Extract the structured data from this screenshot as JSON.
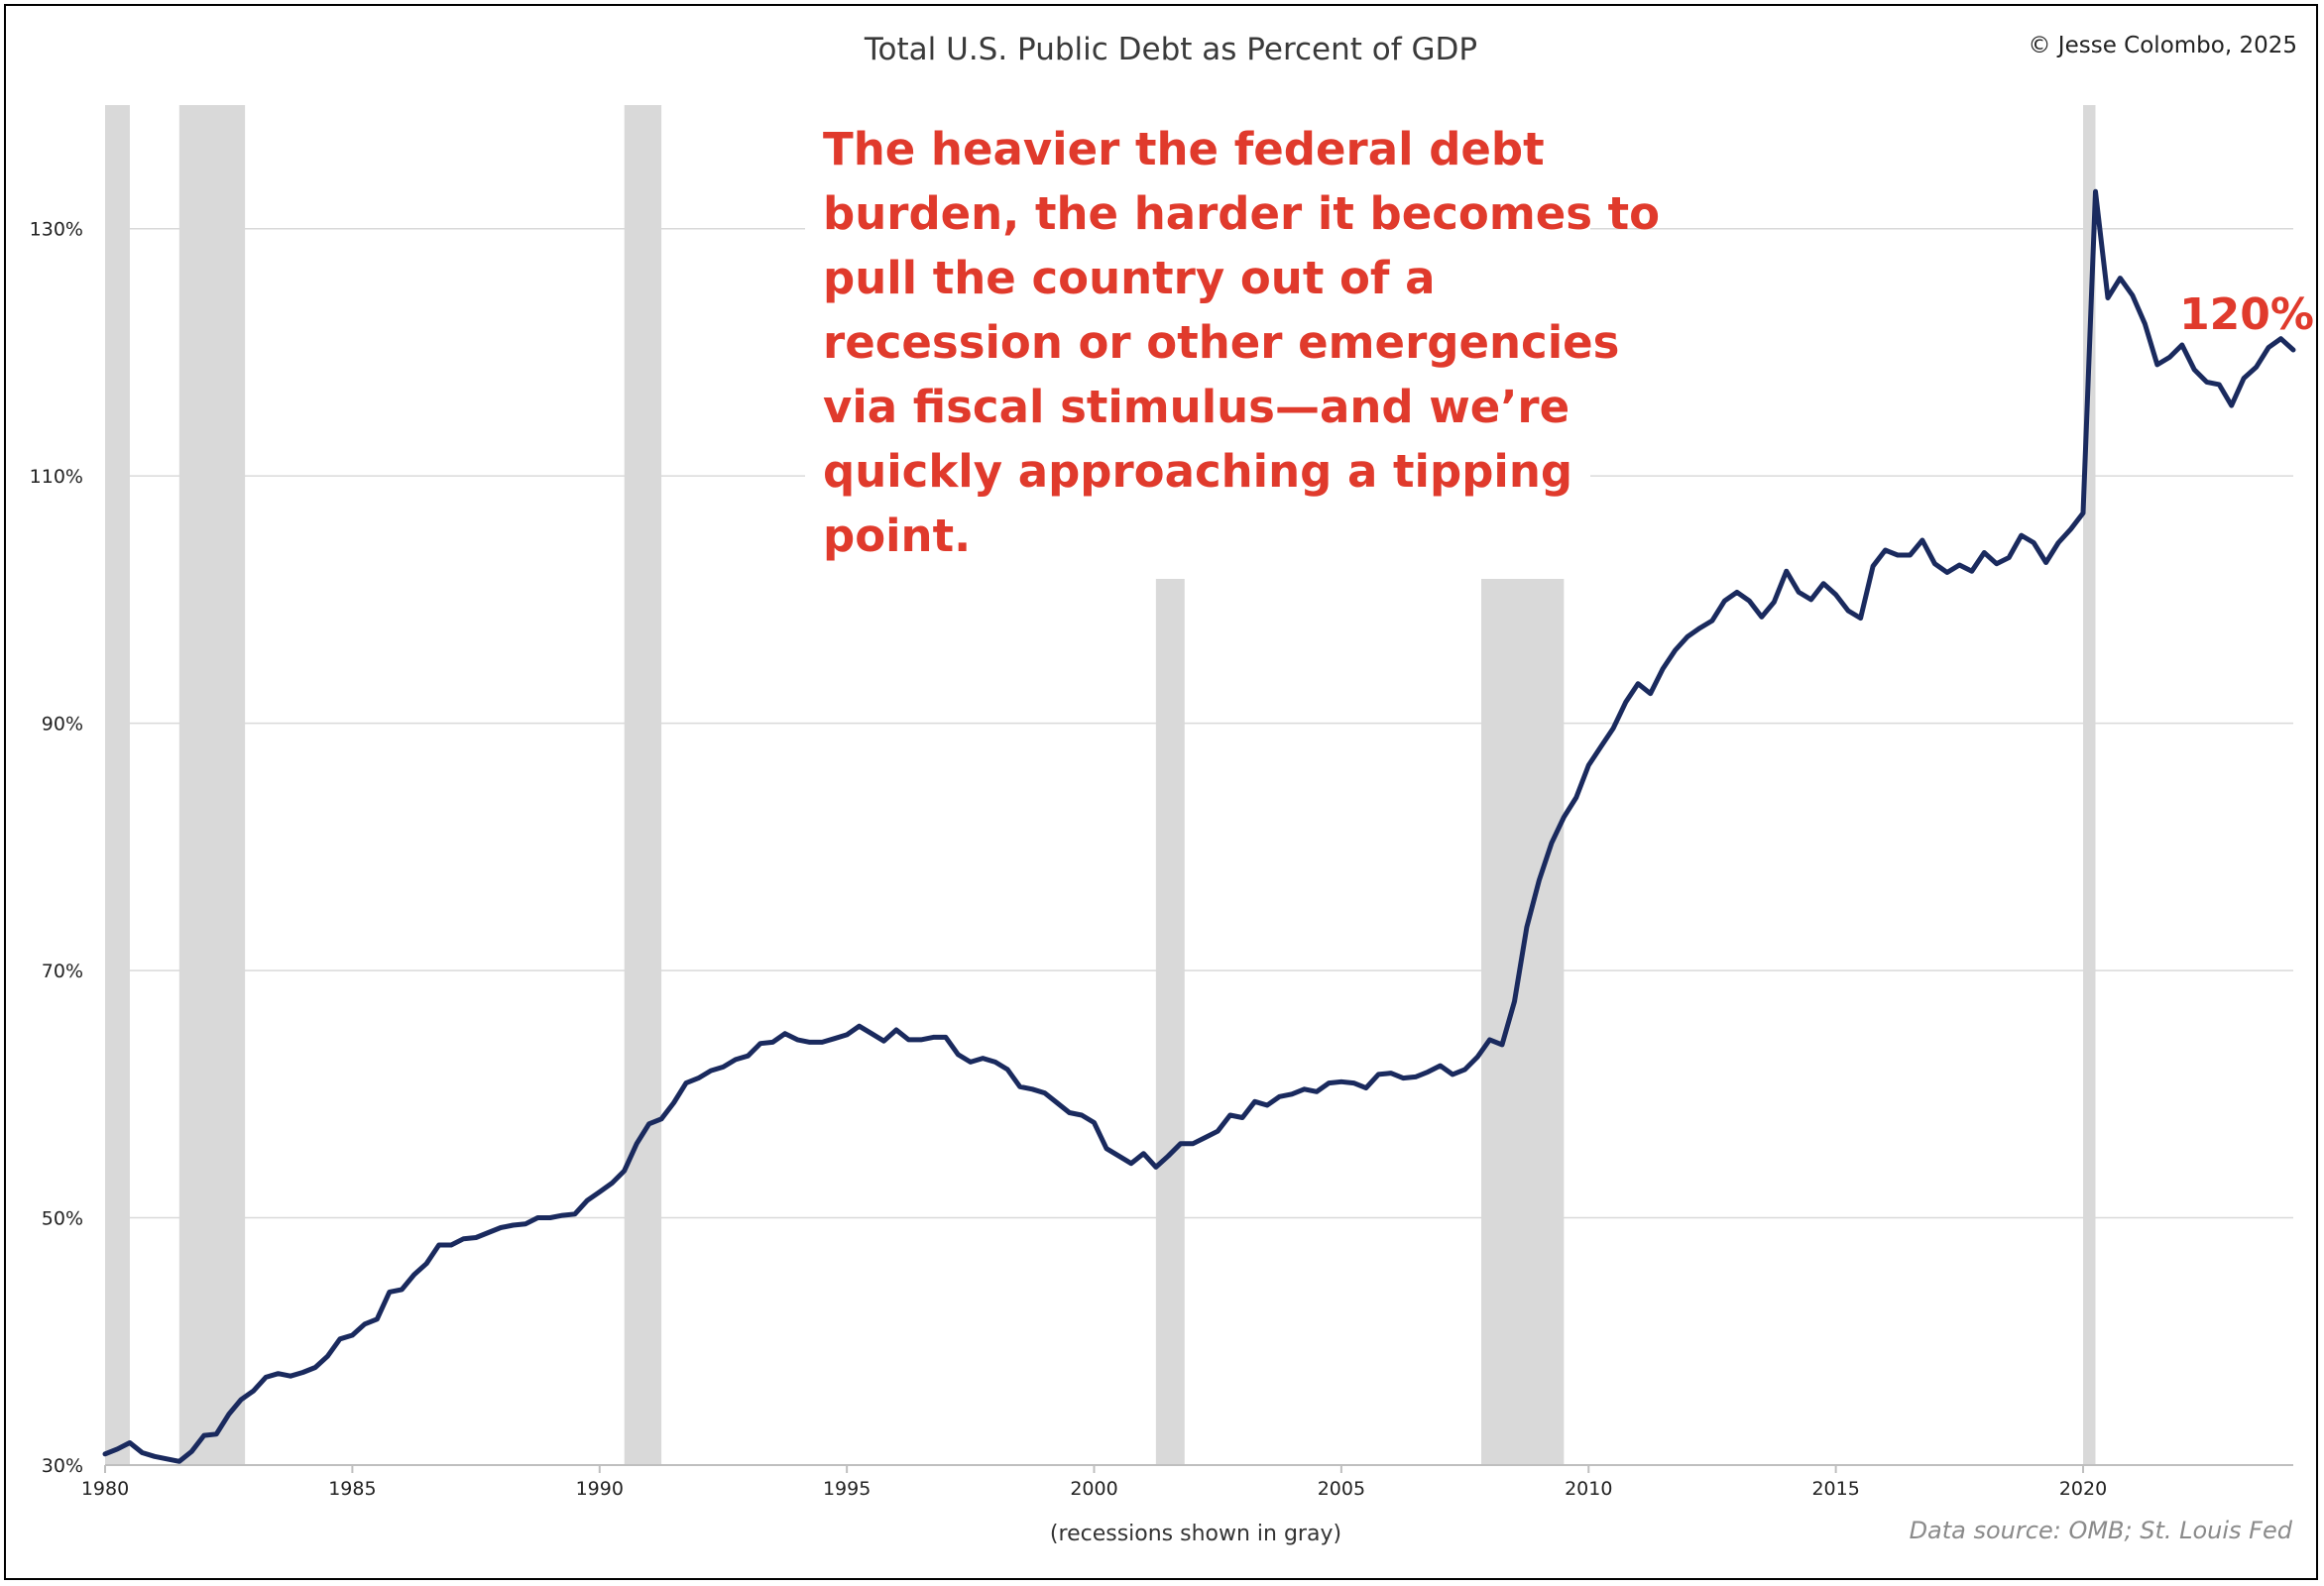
{
  "chart_data": {
    "type": "line",
    "title": "Total U.S. Public Debt as Percent of GDP",
    "copyright": "© Jesse Colombo, 2025",
    "xlabel": "(recessions shown in gray)",
    "ylabel": "",
    "source": "Data source: OMB; St. Louis Fed",
    "xlim": [
      1980,
      2024.25
    ],
    "ylim": [
      30,
      140
    ],
    "x_ticks": [
      "1980",
      "1985",
      "1990",
      "1995",
      "2000",
      "2005",
      "2010",
      "2015",
      "2020"
    ],
    "y_ticks": [
      "30%",
      "50%",
      "70%",
      "90%",
      "110%",
      "130%"
    ],
    "grid": "horizontal",
    "line_color": "#1a2a5e",
    "recession_color": "#d9d9d9",
    "annotation_color": "#e03a2c",
    "annotation_lines": [
      "The heavier the federal debt",
      "burden, the harder it becomes to",
      "pull the country out of a",
      "recession or other emergencies",
      "via fiscal stimulus—and we’re",
      "quickly approaching a tipping",
      "point."
    ],
    "end_label": "120%",
    "recessions": [
      [
        1980.0,
        1980.5
      ],
      [
        1981.5,
        1982.83
      ],
      [
        1990.5,
        1991.25
      ],
      [
        2001.25,
        2001.83
      ],
      [
        2007.83,
        2009.5
      ],
      [
        2020.0,
        2020.25
      ]
    ],
    "series": [
      {
        "x": [
          1980.0,
          1980.25,
          1980.5,
          1980.75,
          1981.0,
          1981.25,
          1981.5,
          1981.75,
          1982.0,
          1982.25,
          1982.5,
          1982.75,
          1983.0,
          1983.25,
          1983.5,
          1983.75,
          1984.0,
          1984.25,
          1984.5,
          1984.75,
          1985.0,
          1985.25,
          1985.5,
          1985.75,
          1986.0,
          1986.25,
          1986.5,
          1986.75,
          1987.0,
          1987.25,
          1987.5,
          1987.75,
          1988.0,
          1988.25,
          1988.5,
          1988.75,
          1989.0,
          1989.25,
          1989.5,
          1989.75,
          1990.0,
          1990.25,
          1990.5,
          1990.75,
          1991.0,
          1991.25,
          1991.5,
          1991.75,
          1992.0,
          1992.25,
          1992.5,
          1992.75,
          1993.0,
          1993.25,
          1993.5,
          1993.75,
          1994.0,
          1994.25,
          1994.5,
          1994.75,
          1995.0,
          1995.25,
          1995.5,
          1995.75,
          1996.0,
          1996.25,
          1996.5,
          1996.75,
          1997.0,
          1997.25,
          1997.5,
          1997.75,
          1998.0,
          1998.25,
          1998.5,
          1998.75,
          1999.0,
          1999.25,
          1999.5,
          1999.75,
          2000.0,
          2000.25,
          2000.5,
          2000.75,
          2001.0,
          2001.25,
          2001.5,
          2001.75,
          2002.0,
          2002.25,
          2002.5,
          2002.75,
          2003.0,
          2003.25,
          2003.5,
          2003.75,
          2004.0,
          2004.25,
          2004.5,
          2004.75,
          2005.0,
          2005.25,
          2005.5,
          2005.75,
          2006.0,
          2006.25,
          2006.5,
          2006.75,
          2007.0,
          2007.25,
          2007.5,
          2007.75,
          2008.0,
          2008.25,
          2008.5,
          2008.75,
          2009.0,
          2009.25,
          2009.5,
          2009.75,
          2010.0,
          2010.25,
          2010.5,
          2010.75,
          2011.0,
          2011.25,
          2011.5,
          2011.75,
          2012.0,
          2012.25,
          2012.5,
          2012.75,
          2013.0,
          2013.25,
          2013.5,
          2013.75,
          2014.0,
          2014.25,
          2014.5,
          2014.75,
          2015.0,
          2015.25,
          2015.5,
          2015.75,
          2016.0,
          2016.25,
          2016.5,
          2016.75,
          2017.0,
          2017.25,
          2017.5,
          2017.75,
          2018.0,
          2018.25,
          2018.5,
          2018.75,
          2019.0,
          2019.25,
          2019.5,
          2019.75,
          2020.0,
          2020.25,
          2020.5,
          2020.75,
          2021.0,
          2021.25,
          2021.5,
          2021.75,
          2022.0,
          2022.25,
          2022.5,
          2022.75,
          2023.0,
          2023.25,
          2023.5,
          2023.75,
          2024.0,
          2024.25
        ],
        "values": [
          30.9,
          31.3,
          31.8,
          31.0,
          30.7,
          30.5,
          30.3,
          31.1,
          32.4,
          32.5,
          34.1,
          35.3,
          36.0,
          37.1,
          37.4,
          37.2,
          37.5,
          37.9,
          38.8,
          40.2,
          40.5,
          41.4,
          41.8,
          44.0,
          44.2,
          45.4,
          46.3,
          47.8,
          47.8,
          48.3,
          48.4,
          48.8,
          49.2,
          49.4,
          49.5,
          50.0,
          50.0,
          50.2,
          50.3,
          51.4,
          52.1,
          52.8,
          53.8,
          56.0,
          57.6,
          58.0,
          59.3,
          60.9,
          61.3,
          61.9,
          62.2,
          62.8,
          63.1,
          64.1,
          64.2,
          64.9,
          64.4,
          64.2,
          64.2,
          64.5,
          64.8,
          65.5,
          64.9,
          64.3,
          65.2,
          64.4,
          64.4,
          64.6,
          64.6,
          63.2,
          62.6,
          62.9,
          62.6,
          62.0,
          60.6,
          60.4,
          60.1,
          59.3,
          58.5,
          58.3,
          57.7,
          55.6,
          55.0,
          54.4,
          55.2,
          54.1,
          55.0,
          56.0,
          56.0,
          56.5,
          57.0,
          58.3,
          58.1,
          59.4,
          59.1,
          59.8,
          60.0,
          60.4,
          60.2,
          60.9,
          61.0,
          60.9,
          60.5,
          61.6,
          61.7,
          61.3,
          61.4,
          61.8,
          62.3,
          61.6,
          62.0,
          63.0,
          64.4,
          64.0,
          67.5,
          73.5,
          77.3,
          80.3,
          82.4,
          84.0,
          86.6,
          88.1,
          89.6,
          91.7,
          93.2,
          92.4,
          94.4,
          95.9,
          97.0,
          97.7,
          98.3,
          99.9,
          100.6,
          99.9,
          98.6,
          99.8,
          102.3,
          100.6,
          100.0,
          101.3,
          100.4,
          99.1,
          98.5,
          102.7,
          104.0,
          103.6,
          103.6,
          104.8,
          102.9,
          102.2,
          102.8,
          102.3,
          103.8,
          102.9,
          103.4,
          105.2,
          104.6,
          103.0,
          104.6,
          105.7,
          107.0,
          133.0,
          124.4,
          126.0,
          124.6,
          122.3,
          119.0,
          119.6,
          120.6,
          118.6,
          117.6,
          117.4,
          115.7,
          117.9,
          118.8,
          120.4,
          121.1,
          120.2
        ]
      }
    ]
  }
}
